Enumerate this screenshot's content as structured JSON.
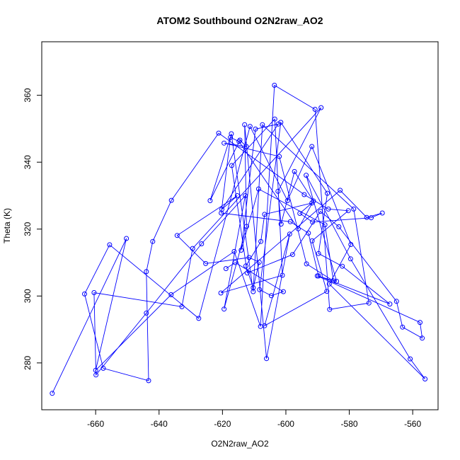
{
  "chart_data": {
    "type": "line",
    "title": "ATOM2 Southbound O2N2raw_AO2",
    "xlabel": "O2N2raw_AO2",
    "ylabel": "Theta (K)",
    "xlim": [
      -677,
      -552
    ],
    "ylim": [
      266,
      376
    ],
    "xticks": [
      -660,
      -640,
      -620,
      -600,
      -580,
      -560
    ],
    "yticks": [
      280,
      300,
      320,
      340,
      360
    ],
    "grid": false,
    "markers": "open-circle",
    "line_color": "#0000ff",
    "series": [
      {
        "x": [
          -673.7,
          -650.3,
          -660.0,
          -636.2,
          -616.3,
          -608.0,
          -603.6,
          -590.8,
          -586.2,
          -573.8,
          -578.6,
          -607.4,
          -610.3,
          -617.2,
          -623.9,
          -614.5,
          -612.5,
          -619.5,
          -602.1,
          -593.5,
          -585.0,
          -587.7,
          -608.6,
          -614.1,
          -609.6,
          -602.4,
          -620.2,
          -615.3,
          -634.3,
          -625.3,
          -611.6,
          -608.4,
          -610.3,
          -612.6,
          -607.9,
          -606.7,
          -591.8,
          -595.6,
          -591.6,
          -573.1,
          -569.6,
          -574.5,
          -582.9,
          -620.5,
          -601.1,
          -603.5,
          -617.1,
          -612.2,
          -597.9,
          -589.1,
          -583.3,
          -565.1,
          -563.2,
          -557.0,
          -557.7,
          -590.1,
          -584.0,
          -593.6,
          -579.6,
          -560.8,
          -556.1,
          -586.3,
          -579.5,
          -591.8,
          -599.5,
          -611.3,
          -627.5,
          -655.6,
          -663.5,
          -657.6,
          -643.3,
          -644.0,
          -642.0,
          -636.1,
          -621.2,
          -594.2,
          -586.6,
          -580.3,
          -591.7,
          -587.1,
          -606.7,
          -598.8,
          -606.1,
          -613.0,
          -612.4,
          -619.5,
          -612.8,
          -626.6,
          -644.0,
          -659.9,
          -660.5,
          -632.8,
          -629.4,
          -588.9,
          -602.5,
          -601.5,
          -597.3,
          -591.3,
          -596.1,
          -614.8,
          -617.5,
          -620.4,
          -598.6,
          -592.9,
          -589.7,
          -567.2,
          -582.2,
          -589.7,
          -586.9,
          -601.6,
          -608.3,
          -604.6,
          -600.8,
          -616.0,
          -618.9
        ],
        "y": [
          270.9,
          317.2,
          277.8,
          300.4,
          313.3,
          290.9,
          363.0,
          355.8,
          296.0,
          297.9,
          326.0,
          351.2,
          301.3,
          348.5,
          328.5,
          346.6,
          344.7,
          345.7,
          341.7,
          309.6,
          304.5,
          321.3,
          332.0,
          313.7,
          349.9,
          351.4,
          325.9,
          330.0,
          318.1,
          309.7,
          311.5,
          310.1,
          302.5,
          309.0,
          316.3,
          324.4,
          327.8,
          324.7,
          322.1,
          323.4,
          324.8,
          323.5,
          331.6,
          300.9,
          306.2,
          352.9,
          339.0,
          306.9,
          312.4,
          325.3,
          320.7,
          298.4,
          290.7,
          287.4,
          292.1,
          306.0,
          304.4,
          336.1,
          311.1,
          281.2,
          275.2,
          303.6,
          315.4,
          344.7,
          328.5,
          350.7,
          293.3,
          315.3,
          300.6,
          278.4,
          274.7,
          307.3,
          316.3,
          328.6,
          348.7,
          330.3,
          326.0,
          325.5,
          316.5,
          301.4,
          291.1,
          318.5,
          281.3,
          351.2,
          320.8,
          296.1,
          330.0,
          315.6,
          294.9,
          276.4,
          301.0,
          296.8,
          314.2,
          356.3,
          331.3,
          321.5,
          337.2,
          328.4,
          320.1,
          346.2,
          347.4,
          324.8,
          322.2,
          318.8,
          306.0,
          297.6,
          308.9,
          312.7,
          330.7,
          351.9,
          301.9,
          300.1,
          301.3,
          310.0,
          308.2
        ]
      }
    ]
  }
}
